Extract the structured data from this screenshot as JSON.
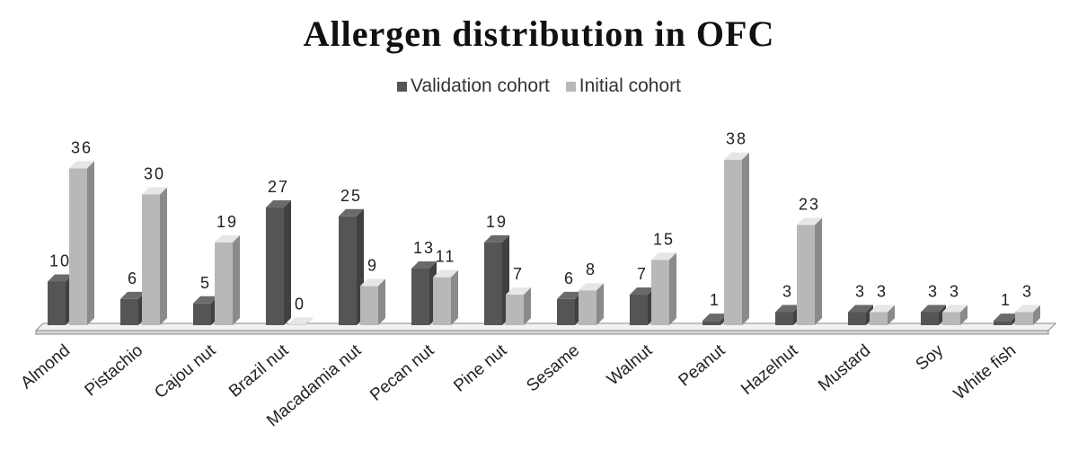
{
  "chart_data": {
    "type": "bar",
    "title": "Allergen distribution in OFC",
    "categories": [
      "Almond",
      "Pistachio",
      "Cajou nut",
      "Brazil nut",
      "Macadamia nut",
      "Pecan nut",
      "Pine nut",
      "Sesame",
      "Walnut",
      "Peanut",
      "Hazelnut",
      "Mustard",
      "Soy",
      "White fish"
    ],
    "series": [
      {
        "name": "Validation cohort",
        "values": [
          10,
          6,
          5,
          27,
          25,
          13,
          19,
          6,
          7,
          1,
          3,
          3,
          3,
          1
        ],
        "color": "#555555"
      },
      {
        "name": "Initial cohort",
        "values": [
          36,
          30,
          19,
          0,
          9,
          11,
          7,
          8,
          15,
          38,
          23,
          3,
          3,
          3
        ],
        "color": "#b8b8b8"
      }
    ],
    "xlabel": "",
    "ylabel": "",
    "ylim": [
      0,
      40
    ],
    "grid": false,
    "legend_position": "top-center",
    "style": "3d-clustered-column"
  }
}
